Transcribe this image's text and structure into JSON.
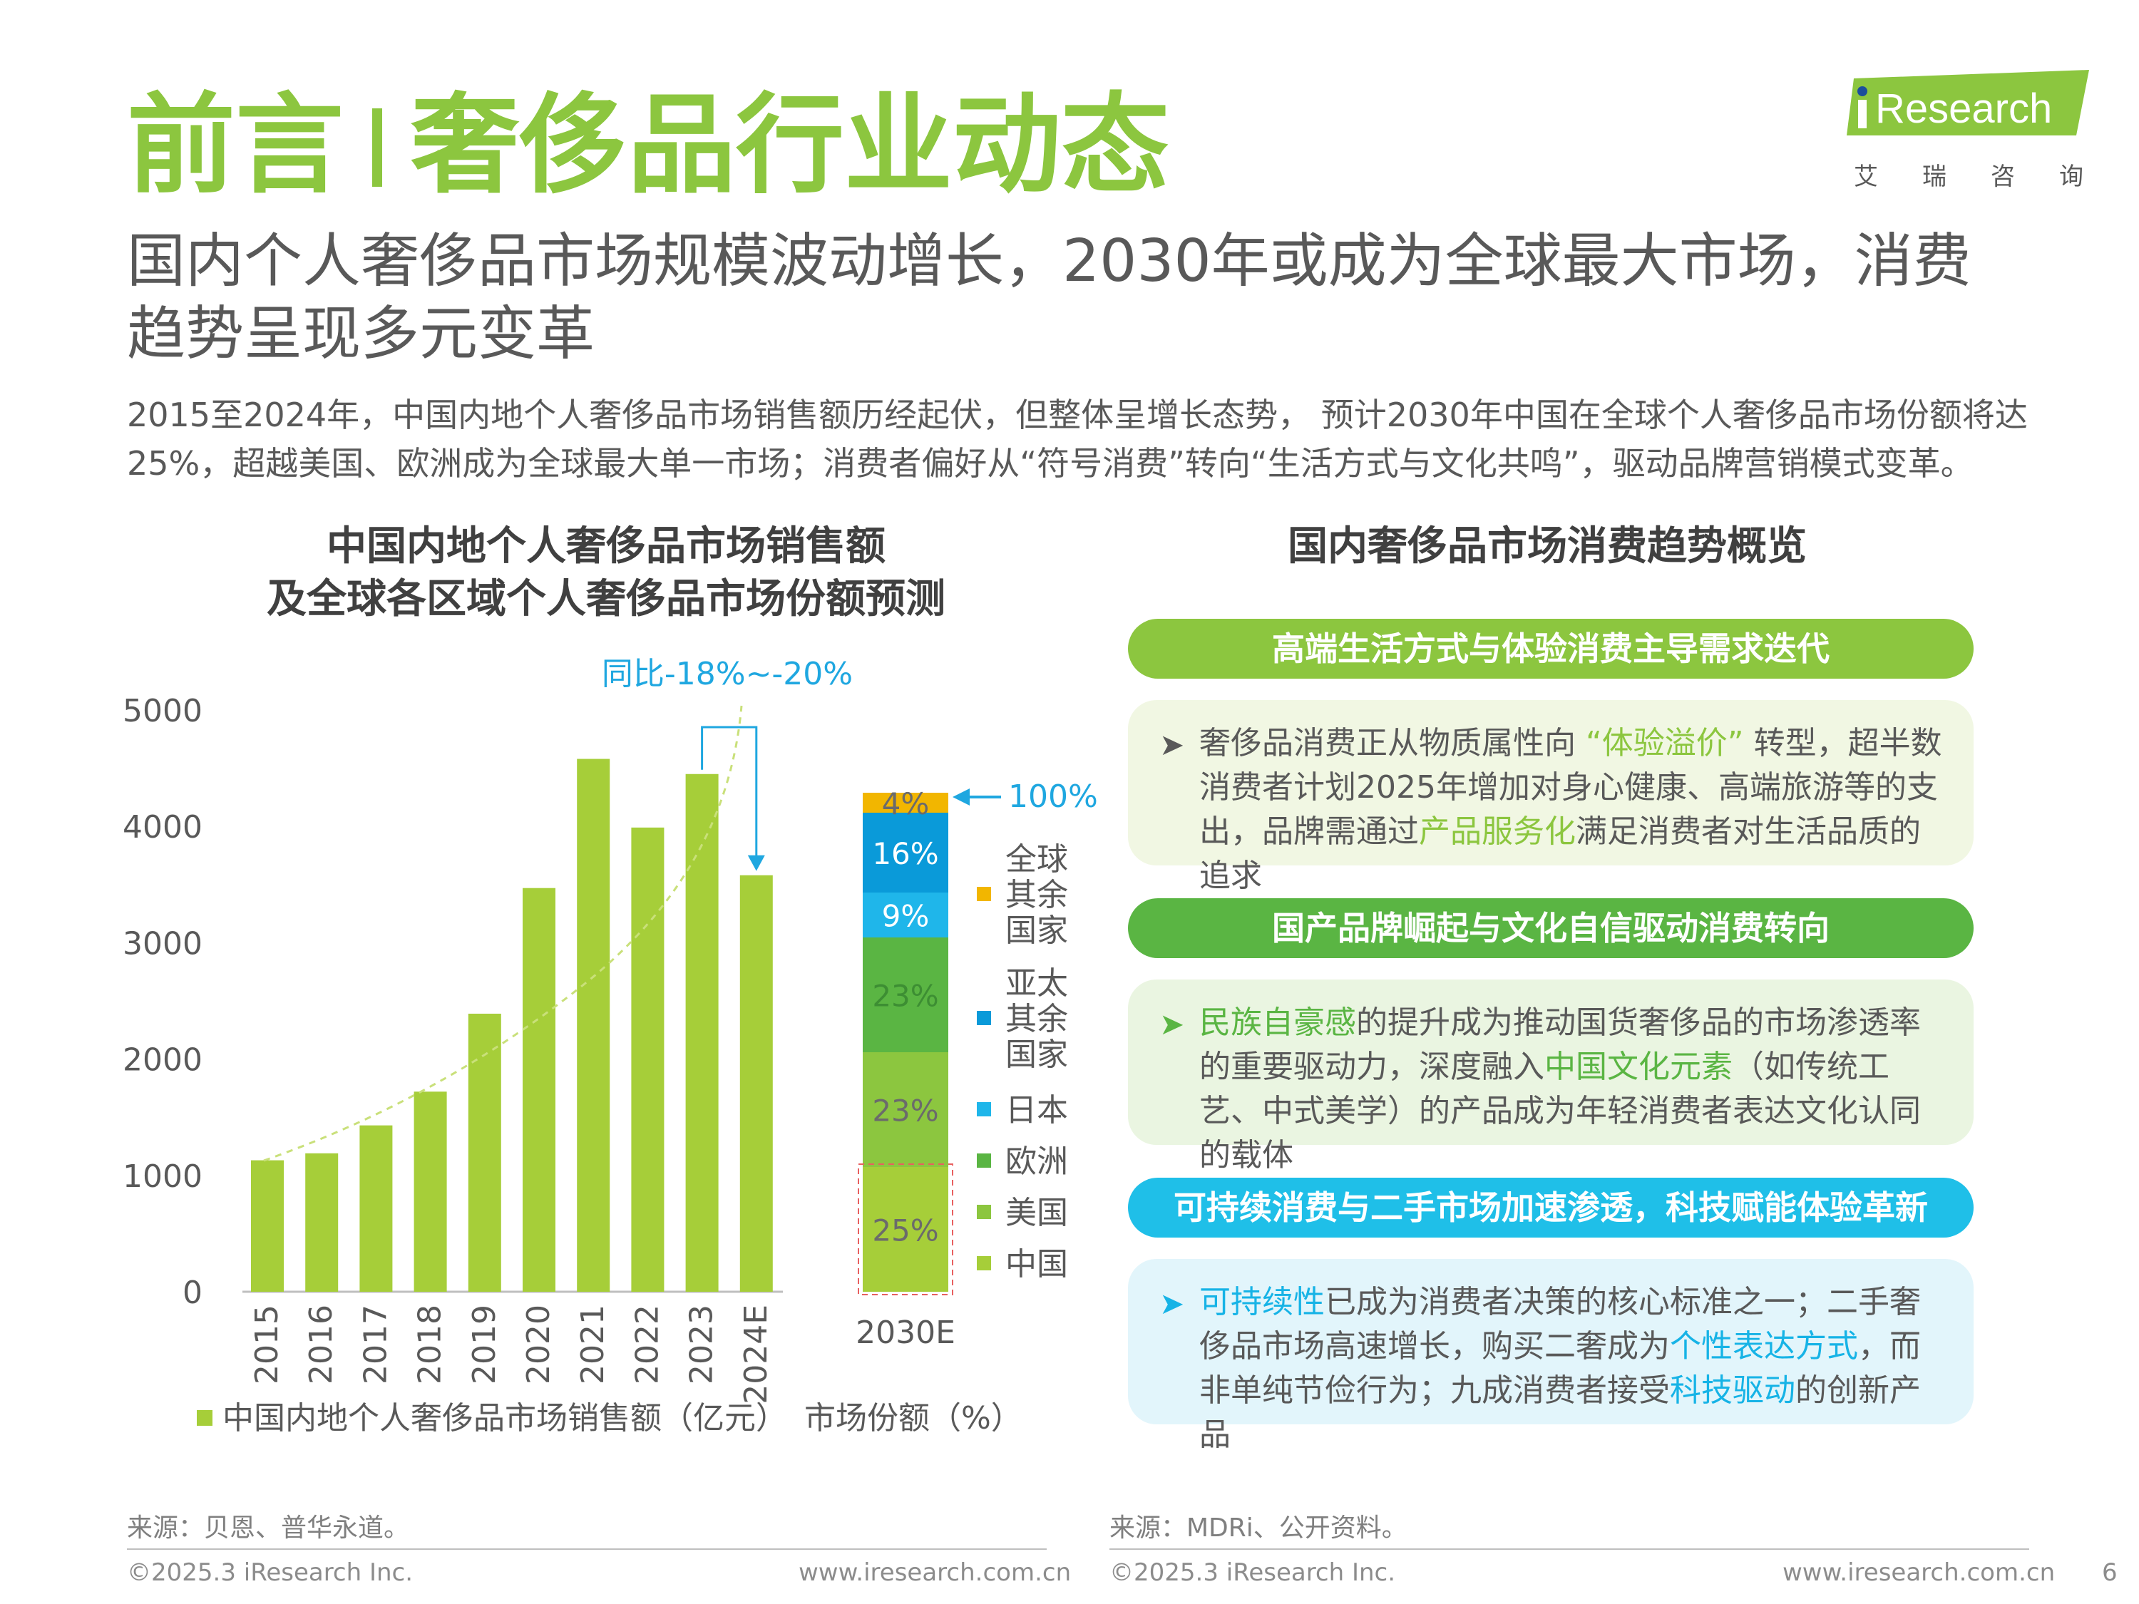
{
  "header": {
    "title_left": "前言",
    "title_right": "奢侈品行业动态",
    "subtitle": "国内个人奢侈品市场规模波动增长，2030年或成为全球最大市场，消费趋势呈现多元变革",
    "intro": "2015至2024年，中国内地个人奢侈品市场销售额历经起伏，但整体呈增长态势， 预计2030年中国在全球个人奢侈品市场份额将达25%，超越美国、欧洲成为全球最大单一市场；消费者偏好从“符号消费”转向“生活方式与文化共鸣”，驱动品牌营销模式变革。"
  },
  "logo": {
    "brand": "iResearch",
    "cn": "艾瑞咨询",
    "color": "#8cc63f"
  },
  "left_chart": {
    "title_line1": "中国内地个人奢侈品市场销售额",
    "title_line2": "及全球各区域个人奢侈品市场份额预测",
    "annotation": "同比-18%~-20%",
    "legend_sales": "中国内地个人奢侈品市场销售额（亿元）",
    "legend_share": "市场份额（%）",
    "source": "来源：贝恩、普华永道。"
  },
  "chart_data": [
    {
      "type": "bar",
      "categories": [
        "2015",
        "2016",
        "2017",
        "2018",
        "2019",
        "2020",
        "2021",
        "2022",
        "2023",
        "2024E"
      ],
      "values": [
        1130,
        1190,
        1430,
        1720,
        2390,
        3470,
        4580,
        3990,
        4450,
        3580
      ],
      "ylim": [
        0,
        5000
      ],
      "yticks": [
        0,
        1000,
        2000,
        3000,
        4000,
        5000
      ],
      "series_label": "中国内地个人奢侈品市场销售额（亿元）",
      "annotation": "同比-18%~-20%",
      "color": "#a6ce39"
    },
    {
      "type": "bar",
      "stacked": true,
      "categories": [
        "2030E"
      ],
      "total_label": "100%",
      "series": [
        {
          "name": "中国",
          "values": [
            25
          ],
          "label": "25%",
          "color": "#a6ce39"
        },
        {
          "name": "美国",
          "values": [
            23
          ],
          "label": "23%",
          "color": "#8cc63f"
        },
        {
          "name": "欧洲",
          "values": [
            23
          ],
          "label": "23%",
          "color": "#5ab543"
        },
        {
          "name": "日本",
          "values": [
            9
          ],
          "label": "9%",
          "color": "#1fb6ea"
        },
        {
          "name": "亚太其余国家",
          "values": [
            16
          ],
          "label": "16%",
          "color": "#0a9ad9"
        },
        {
          "name": "全球其余国家",
          "values": [
            4
          ],
          "label": "4%",
          "color": "#f2b600"
        }
      ],
      "legend_order": [
        "全球其余国家",
        "亚太其余国家",
        "日本",
        "欧洲",
        "美国",
        "中国"
      ],
      "legend_text": {
        "全球其余国家": [
          "全球",
          "其余",
          "国家"
        ],
        "亚太其余国家": [
          "亚太",
          "其余",
          "国家"
        ],
        "日本": [
          "日本"
        ],
        "欧洲": [
          "欧洲"
        ],
        "美国": [
          "美国"
        ],
        "中国": [
          "中国"
        ]
      },
      "series_label": "市场份额（%）"
    }
  ],
  "right_panel": {
    "title": "国内奢侈品市场消费趋势概览",
    "sections": [
      {
        "header": "高端生活方式与体验消费主导需求迭代",
        "header_color": "#8cc63f",
        "box_color": "#f1f7e3",
        "arrow_color": "#595959",
        "parts": [
          {
            "t": "奢侈品消费正从物质属性向 "
          },
          {
            "t": "“体验溢价”",
            "hl": "hl-green"
          },
          {
            "t": " 转型，超半数消费者计划2025年增加对身心健康、高端旅游等的支出，品牌需通过"
          },
          {
            "t": "产品服务化",
            "hl": "hl-green"
          },
          {
            "t": "满足消费者对生活品质的追求"
          }
        ]
      },
      {
        "header": "国产品牌崛起与文化自信驱动消费转向",
        "header_color": "#5ab543",
        "box_color": "#eaf5e1",
        "arrow_color": "#5ab543",
        "parts": [
          {
            "t": "民族自豪感",
            "hl": "hl-green2"
          },
          {
            "t": "的提升成为推动国货奢侈品的市场渗透率的重要驱动力，深度融入"
          },
          {
            "t": "中国文化元素",
            "hl": "hl-green2"
          },
          {
            "t": "（如传统工艺、中式美学）的产品成为年轻消费者表达文化认同的载体"
          }
        ]
      },
      {
        "header": "可持续消费与二手市场加速渗透，科技赋能体验革新",
        "header_color": "#1fbfe8",
        "box_color": "#e2f5fb",
        "arrow_color": "#16b3e6",
        "parts": [
          {
            "t": "可持续性",
            "hl": "hl-blue"
          },
          {
            "t": "已成为消费者决策的核心标准之一；二手奢侈品市场高速增长，购买二奢成为"
          },
          {
            "t": "个性表达方式",
            "hl": "hl-blue"
          },
          {
            "t": "，而非单纯节俭行为；九成消费者接受"
          },
          {
            "t": "科技驱动",
            "hl": "hl-blue"
          },
          {
            "t": "的创新产品"
          }
        ]
      }
    ],
    "source": "来源：MDRi、公开资料。"
  },
  "footer": {
    "copyright": "©2025.3 iResearch Inc.",
    "url": "www.iresearch.com.cn",
    "page": "6"
  }
}
